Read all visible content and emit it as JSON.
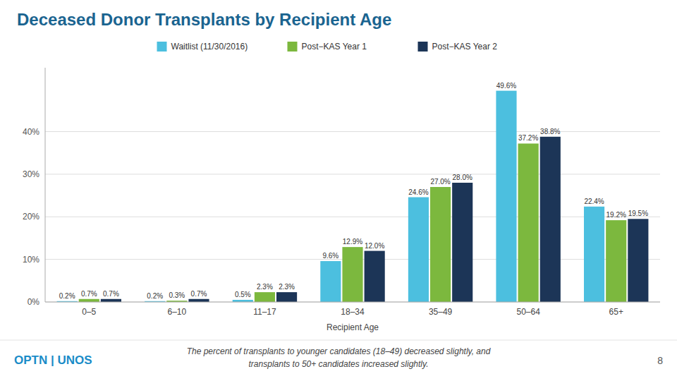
{
  "chart_data": {
    "type": "bar",
    "title": "Deceased Donor Transplants by Recipient Age",
    "categories": [
      "0–5",
      "6–10",
      "11–17",
      "18–34",
      "35–49",
      "50–64",
      "65+"
    ],
    "series": [
      {
        "name": "Waitlist (11/30/2016)",
        "color": "#4CBFDF",
        "values": [
          0.2,
          0.2,
          0.5,
          9.6,
          24.6,
          49.6,
          22.4
        ],
        "value_labels": [
          "0.2%",
          "0.2%",
          "0.5%",
          "9.6%",
          "24.6%",
          "49.6%",
          "22.4%"
        ]
      },
      {
        "name": "Post−KAS Year 1",
        "color": "#7CB83E",
        "values": [
          0.7,
          0.3,
          2.3,
          12.9,
          27.0,
          37.2,
          19.2
        ],
        "value_labels": [
          "0.7%",
          "0.3%",
          "2.3%",
          "12.9%",
          "27.0%",
          "37.2%",
          "19.2%"
        ]
      },
      {
        "name": "Post−KAS Year 2",
        "color": "#1C3557",
        "values": [
          0.7,
          0.7,
          2.3,
          12.0,
          28.0,
          38.8,
          19.5
        ],
        "value_labels": [
          "0.7%",
          "0.7%",
          "2.3%",
          "12.0%",
          "28.0%",
          "38.8%",
          "19.5%"
        ]
      }
    ],
    "x_label": "Recipient Age",
    "ylim": [
      0,
      55
    ],
    "yticks": [
      {
        "value": 0,
        "label": "0%"
      },
      {
        "value": 10,
        "label": "10%"
      },
      {
        "value": 20,
        "label": "20%"
      },
      {
        "value": 30,
        "label": "30%"
      },
      {
        "value": 40,
        "label": "40%"
      }
    ],
    "grid": true,
    "legend": "top",
    "data_labels": true,
    "annotations": [
      "The percent of transplants to younger candidates (18–49) decreased slightly, and",
      "transplants to 50+ candidates increased slightly.",
      "OPTN | UNOS",
      "8"
    ]
  }
}
